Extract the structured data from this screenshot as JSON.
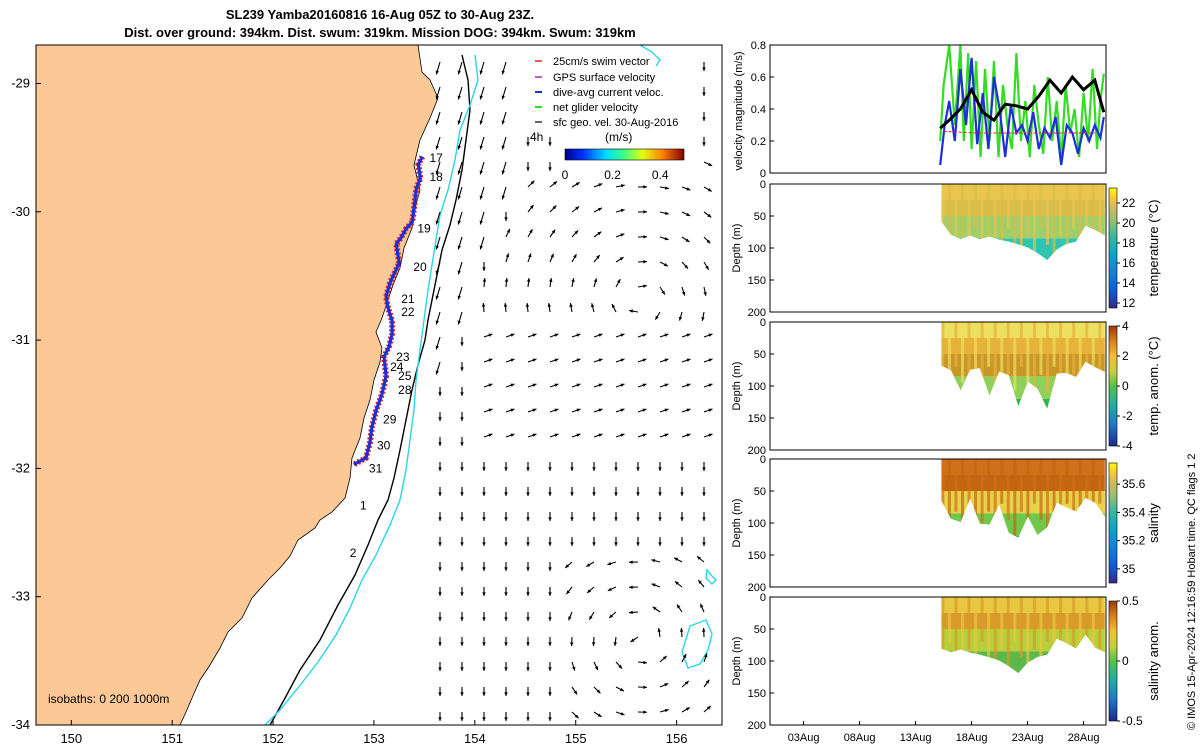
{
  "figure": {
    "title_line1": "SL239 Yamba20160816 16-Aug 05Z to 30-Aug 23Z.",
    "title_line2": "Dist. over ground: 394km. Dist. swum: 319km. Mission DOG: 394km. Swum: 319km",
    "credit": "© IMOS 15-Apr-2024 12:16:59 Hobart time. QC flags 1  2"
  },
  "colors": {
    "land": "#fbc896",
    "ocean": "#ffffff",
    "isobath_200": "#000000",
    "isobath_1000": "#27d6e6",
    "track_red": "#e8231b",
    "track_blue": "#1d2fd8",
    "gps_vel": "#a030c0",
    "net_vel": "#33dd22",
    "geo_vel": "#000000"
  },
  "chart_data": [
    {
      "type": "scatter",
      "panel": "map",
      "xlim": [
        149.65,
        156.45
      ],
      "ylim": [
        -34,
        -28.7
      ],
      "xticks": [
        150,
        151,
        152,
        153,
        154,
        155,
        156
      ],
      "yticks": [
        -29,
        -30,
        -31,
        -32,
        -33,
        -34
      ],
      "legend": {
        "placement": "top-right",
        "entries": [
          "25cm/s swim vector",
          "GPS surface velocity",
          "dive-avg current veloc.",
          "net glider velocity",
          "sfc geo. vel. 30-Aug-2016"
        ]
      },
      "colorbar": {
        "label": "(m/s)",
        "ticks": [
          "0",
          "0.2",
          "0.4"
        ],
        "range": [
          0,
          0.5
        ],
        "speed_label": "4h"
      },
      "isobaths_label": "isobaths: 0   200  1000m",
      "track": [
        [
          153.48,
          -29.57
        ],
        [
          153.44,
          -29.63
        ],
        [
          153.46,
          -29.74
        ],
        [
          153.42,
          -29.82
        ],
        [
          153.4,
          -29.95
        ],
        [
          153.38,
          -30.08
        ],
        [
          153.32,
          -30.13
        ],
        [
          153.27,
          -30.2
        ],
        [
          153.22,
          -30.25
        ],
        [
          153.25,
          -30.4
        ],
        [
          153.16,
          -30.55
        ],
        [
          153.12,
          -30.66
        ],
        [
          153.14,
          -30.75
        ],
        [
          153.18,
          -30.85
        ],
        [
          153.18,
          -30.95
        ],
        [
          153.15,
          -31.05
        ],
        [
          153.1,
          -31.13
        ],
        [
          153.12,
          -31.28
        ],
        [
          153.08,
          -31.42
        ],
        [
          153.02,
          -31.55
        ],
        [
          152.98,
          -31.68
        ],
        [
          152.96,
          -31.8
        ],
        [
          152.92,
          -31.92
        ],
        [
          152.8,
          -31.97
        ]
      ],
      "day_labels": [
        {
          "day": "17",
          "lon": 153.55,
          "lat": -29.58
        },
        {
          "day": "18",
          "lon": 153.55,
          "lat": -29.73
        },
        {
          "day": "19",
          "lon": 153.43,
          "lat": -30.13
        },
        {
          "day": "20",
          "lon": 153.39,
          "lat": -30.43
        },
        {
          "day": "21",
          "lon": 153.27,
          "lat": -30.68
        },
        {
          "day": "22",
          "lon": 153.27,
          "lat": -30.78
        },
        {
          "day": "23",
          "lon": 153.22,
          "lat": -31.13
        },
        {
          "day": "24",
          "lon": 153.16,
          "lat": -31.21
        },
        {
          "day": "25",
          "lon": 153.24,
          "lat": -31.28
        },
        {
          "day": "28",
          "lon": 153.24,
          "lat": -31.39
        },
        {
          "day": "29",
          "lon": 153.09,
          "lat": -31.62
        },
        {
          "day": "30",
          "lon": 153.03,
          "lat": -31.82
        },
        {
          "day": "31",
          "lon": 152.95,
          "lat": -32.0
        },
        {
          "day": "1",
          "lon": 152.86,
          "lat": -32.29
        },
        {
          "day": "2",
          "lon": 152.76,
          "lat": -32.66
        }
      ]
    },
    {
      "type": "line",
      "panel": "velocity",
      "xlim": [
        0,
        30
      ],
      "ylim": [
        0,
        0.8
      ],
      "yticks": [
        0,
        0.2,
        0.4,
        0.6,
        0.8
      ],
      "ylabel": "velocity magnitude (m/s)",
      "series": [
        {
          "color": "#000000",
          "x": [
            15.2,
            16,
            17,
            18,
            19,
            20,
            21,
            22,
            23,
            24,
            25,
            26,
            27,
            28,
            29,
            29.8
          ],
          "values": [
            0.28,
            0.33,
            0.4,
            0.52,
            0.38,
            0.33,
            0.43,
            0.42,
            0.4,
            0.48,
            0.58,
            0.5,
            0.6,
            0.52,
            0.58,
            0.38
          ]
        },
        {
          "color": "#1d2fd8",
          "x": [
            15.2,
            15.6,
            16,
            16.5,
            17,
            17.5,
            18,
            18.5,
            19,
            19.5,
            20,
            20.5,
            21,
            21.5,
            22,
            22.5,
            23,
            23.5,
            24,
            24.5,
            25,
            25.5,
            26,
            26.5,
            27,
            27.5,
            28,
            28.5,
            29,
            29.5,
            29.8
          ],
          "values": [
            0.05,
            0.3,
            0.45,
            0.2,
            0.65,
            0.3,
            0.72,
            0.18,
            0.5,
            0.15,
            0.6,
            0.4,
            0.1,
            0.42,
            0.25,
            0.3,
            0.2,
            0.38,
            0.15,
            0.28,
            0.22,
            0.35,
            0.05,
            0.3,
            0.25,
            0.12,
            0.28,
            0.2,
            0.3,
            0.22,
            0.35
          ]
        },
        {
          "color": "#33dd22",
          "x": [
            15.2,
            15.5,
            16,
            16.5,
            17,
            17.3,
            17.7,
            18,
            18.4,
            18.8,
            19.2,
            19.6,
            20,
            20.4,
            20.8,
            21.2,
            21.6,
            22,
            22.4,
            22.8,
            23.2,
            23.6,
            24,
            24.4,
            24.8,
            25.2,
            25.6,
            26,
            26.4,
            26.8,
            27.2,
            27.6,
            28,
            28.4,
            28.8,
            29.2,
            29.5,
            29.8
          ],
          "values": [
            0.2,
            0.55,
            0.8,
            0.3,
            0.8,
            0.2,
            0.75,
            0.15,
            0.7,
            0.1,
            0.65,
            0.2,
            0.7,
            0.1,
            0.55,
            0.3,
            0.15,
            0.75,
            0.2,
            0.45,
            0.1,
            0.55,
            0.3,
            0.12,
            0.6,
            0.2,
            0.45,
            0.08,
            0.55,
            0.25,
            0.4,
            0.1,
            0.5,
            0.2,
            0.65,
            0.15,
            0.45,
            0.62
          ]
        },
        {
          "color": "#e8231b",
          "x": [
            15.5,
            18.5,
            21,
            23,
            25,
            27,
            29
          ],
          "values": [
            0.26,
            0.25,
            0.25,
            0.25,
            0.25,
            0.25,
            0.25
          ]
        }
      ]
    },
    {
      "type": "heatmap",
      "panel": "temperature",
      "ylabel": "Depth (m)",
      "ylim": [
        200,
        0
      ],
      "yticks": [
        0,
        50,
        100,
        150,
        200
      ],
      "colorbar_label": "temperature (°C)",
      "colorbar_ticks": [
        12,
        14,
        16,
        18,
        20,
        22
      ],
      "colorbar_range": [
        11.5,
        23.5
      ],
      "colormap": "parula"
    },
    {
      "type": "heatmap",
      "panel": "temp_anom",
      "ylabel": "Depth (m)",
      "ylim": [
        200,
        0
      ],
      "yticks": [
        0,
        50,
        100,
        150,
        200
      ],
      "colorbar_label": "temp. anom. (°C)",
      "colorbar_ticks": [
        -4,
        -2,
        0,
        2,
        4
      ],
      "colorbar_range": [
        -4,
        4
      ],
      "colormap": "diverging"
    },
    {
      "type": "heatmap",
      "panel": "salinity",
      "ylabel": "Depth (m)",
      "ylim": [
        200,
        0
      ],
      "yticks": [
        0,
        50,
        100,
        150,
        200
      ],
      "colorbar_label": "salinity",
      "colorbar_ticks": [
        35,
        35.2,
        35.4,
        35.6
      ],
      "colorbar_range": [
        34.9,
        35.75
      ],
      "colormap": "parula"
    },
    {
      "type": "heatmap",
      "panel": "sal_anom",
      "ylabel": "Depth (m)",
      "ylim": [
        200,
        0
      ],
      "yticks": [
        0,
        50,
        100,
        150,
        200
      ],
      "colorbar_label": "salinity anom.",
      "colorbar_ticks": [
        -0.5,
        0,
        0.5
      ],
      "colorbar_range": [
        -0.5,
        0.5
      ],
      "colormap": "diverging",
      "xticks": [
        "03Aug",
        "08Aug",
        "13Aug",
        "18Aug",
        "23Aug",
        "28Aug"
      ],
      "xtick_days": [
        3,
        8,
        13,
        18,
        23,
        28
      ]
    }
  ]
}
